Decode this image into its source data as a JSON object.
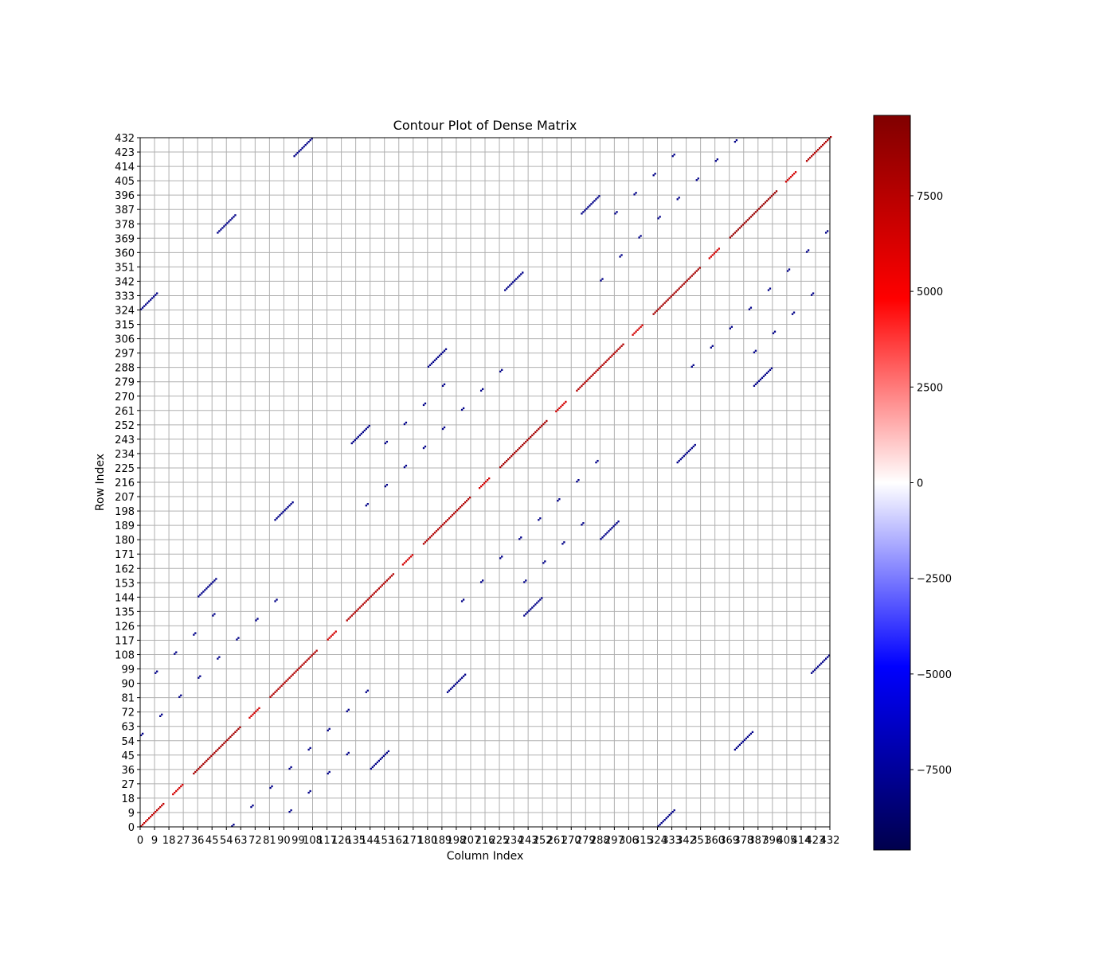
{
  "chart_data": {
    "type": "heatmap",
    "title": "Contour Plot of Dense Matrix",
    "xlabel": "Column Index",
    "ylabel": "Row Index",
    "xlim": [
      0,
      432
    ],
    "ylim": [
      0,
      432
    ],
    "x_ticks": [
      0,
      9,
      18,
      27,
      36,
      45,
      54,
      63,
      72,
      81,
      90,
      99,
      108,
      117,
      126,
      135,
      144,
      153,
      162,
      171,
      180,
      189,
      198,
      207,
      216,
      225,
      234,
      243,
      252,
      261,
      270,
      279,
      288,
      297,
      306,
      315,
      324,
      333,
      342,
      351,
      360,
      369,
      378,
      387,
      396,
      405,
      414,
      423,
      432
    ],
    "y_ticks": [
      0,
      9,
      18,
      27,
      36,
      45,
      54,
      63,
      72,
      81,
      90,
      99,
      108,
      117,
      126,
      135,
      144,
      153,
      162,
      171,
      180,
      189,
      198,
      207,
      216,
      225,
      234,
      243,
      252,
      261,
      270,
      279,
      288,
      297,
      306,
      315,
      324,
      333,
      342,
      351,
      360,
      369,
      378,
      387,
      396,
      405,
      414,
      423,
      432
    ],
    "x_tick_labels": [
      "0",
      "9",
      "18",
      "27",
      "36",
      "45",
      "54",
      "63",
      "72",
      "81",
      "90",
      "99",
      "108",
      "117",
      "126",
      "135",
      "144",
      "153",
      "162",
      "171",
      "180",
      "189",
      "198",
      "207",
      "216",
      "225",
      "234",
      "243",
      "252",
      "261",
      "270",
      "279",
      "288",
      "297",
      "306",
      "315",
      "324",
      "333",
      "342",
      "351",
      "360",
      "369",
      "378",
      "387",
      "396",
      "405",
      "414",
      "423",
      "432"
    ],
    "y_tick_labels": [
      "0",
      "9",
      "18",
      "27",
      "36",
      "45",
      "54",
      "63",
      "72",
      "81",
      "90",
      "99",
      "108",
      "117",
      "126",
      "135",
      "144",
      "153",
      "162",
      "171",
      "180",
      "189",
      "198",
      "207",
      "216",
      "225",
      "234",
      "243",
      "252",
      "261",
      "270",
      "279",
      "288",
      "297",
      "306",
      "315",
      "324",
      "333",
      "342",
      "351",
      "360",
      "369",
      "378",
      "387",
      "396",
      "405",
      "414",
      "423",
      "432"
    ],
    "grid": true,
    "colormap": "seismic",
    "colorbar": {
      "min": -9600,
      "max": 9600,
      "ticks": [
        -7500,
        -5000,
        -2500,
        0,
        2500,
        5000,
        7500
      ],
      "tick_labels": [
        "−7500",
        "−5000",
        "−2500",
        "0",
        "2500",
        "5000",
        "7500"
      ],
      "stops": [
        "#00004c",
        "#0000ff",
        "#ffffff",
        "#ff0000",
        "#800000"
      ]
    },
    "colors": {
      "positive": "#cc0000",
      "dark_positive": "#800000",
      "negative": "#0000ee"
    },
    "diagonal_segments": [
      {
        "x0": 0,
        "y0": 0,
        "len": 15,
        "value": 7200
      },
      {
        "x0": 20,
        "y0": 20,
        "len": 7,
        "value": 6500
      },
      {
        "x0": 33,
        "y0": 33,
        "len": 30,
        "value": 8200
      },
      {
        "x0": 68,
        "y0": 68,
        "len": 7,
        "value": 6500
      },
      {
        "x0": 81,
        "y0": 81,
        "len": 30,
        "value": 7800
      },
      {
        "x0": 117,
        "y0": 117,
        "len": 6,
        "value": 6500
      },
      {
        "x0": 129,
        "y0": 129,
        "len": 30,
        "value": 7800
      },
      {
        "x0": 164,
        "y0": 164,
        "len": 7,
        "value": 6500
      },
      {
        "x0": 177,
        "y0": 177,
        "len": 30,
        "value": 7800
      },
      {
        "x0": 212,
        "y0": 212,
        "len": 7,
        "value": 6500
      },
      {
        "x0": 225,
        "y0": 225,
        "len": 30,
        "value": 8200
      },
      {
        "x0": 260,
        "y0": 260,
        "len": 7,
        "value": 6500
      },
      {
        "x0": 273,
        "y0": 273,
        "len": 30,
        "value": 7800
      },
      {
        "x0": 308,
        "y0": 308,
        "len": 7,
        "value": 6500
      },
      {
        "x0": 321,
        "y0": 321,
        "len": 30,
        "value": 8200
      },
      {
        "x0": 356,
        "y0": 356,
        "len": 7,
        "value": 6500
      },
      {
        "x0": 369,
        "y0": 369,
        "len": 30,
        "value": 8600
      },
      {
        "x0": 404,
        "y0": 404,
        "len": 7,
        "value": 6500
      },
      {
        "x0": 417,
        "y0": 417,
        "len": 16,
        "value": 7800
      }
    ],
    "off_diagonal_segments": [
      {
        "x0": 324,
        "y0": 0,
        "len": 11,
        "value": -8000
      },
      {
        "x0": 0,
        "y0": 324,
        "len": 11,
        "value": -8000
      },
      {
        "x0": 96,
        "y0": 420,
        "len": 12,
        "value": -8000
      },
      {
        "x0": 420,
        "y0": 96,
        "len": 12,
        "value": -8000
      },
      {
        "x0": 48,
        "y0": 372,
        "len": 12,
        "value": -8000
      },
      {
        "x0": 372,
        "y0": 48,
        "len": 12,
        "value": -8000
      },
      {
        "x0": 36,
        "y0": 144,
        "len": 12,
        "value": -8000
      },
      {
        "x0": 144,
        "y0": 36,
        "len": 12,
        "value": -8000
      },
      {
        "x0": 84,
        "y0": 192,
        "len": 12,
        "value": -8000
      },
      {
        "x0": 192,
        "y0": 84,
        "len": 12,
        "value": -8000
      },
      {
        "x0": 132,
        "y0": 240,
        "len": 12,
        "value": -8000
      },
      {
        "x0": 240,
        "y0": 132,
        "len": 12,
        "value": -8000
      },
      {
        "x0": 180,
        "y0": 288,
        "len": 12,
        "value": -8000
      },
      {
        "x0": 288,
        "y0": 180,
        "len": 12,
        "value": -8000
      },
      {
        "x0": 228,
        "y0": 336,
        "len": 12,
        "value": -8000
      },
      {
        "x0": 336,
        "y0": 228,
        "len": 12,
        "value": -8000
      },
      {
        "x0": 276,
        "y0": 384,
        "len": 12,
        "value": -8000
      },
      {
        "x0": 384,
        "y0": 276,
        "len": 12,
        "value": -8000
      },
      {
        "x0": 57,
        "y0": 0,
        "len": 2,
        "value": -8000
      },
      {
        "x0": 69,
        "y0": 12,
        "len": 2,
        "value": -8000
      },
      {
        "x0": 81,
        "y0": 24,
        "len": 2,
        "value": -8000
      },
      {
        "x0": 93,
        "y0": 9,
        "len": 2,
        "value": -8000
      },
      {
        "x0": 93,
        "y0": 36,
        "len": 2,
        "value": -8000
      },
      {
        "x0": 105,
        "y0": 21,
        "len": 2,
        "value": -8000
      },
      {
        "x0": 105,
        "y0": 48,
        "len": 2,
        "value": -8000
      },
      {
        "x0": 117,
        "y0": 33,
        "len": 2,
        "value": -8000
      },
      {
        "x0": 117,
        "y0": 60,
        "len": 2,
        "value": -8000
      },
      {
        "x0": 129,
        "y0": 45,
        "len": 2,
        "value": -8000
      },
      {
        "x0": 129,
        "y0": 72,
        "len": 2,
        "value": -8000
      },
      {
        "x0": 141,
        "y0": 84,
        "len": 2,
        "value": -8000
      },
      {
        "x0": 0,
        "y0": 57,
        "len": 2,
        "value": -8000
      },
      {
        "x0": 12,
        "y0": 69,
        "len": 2,
        "value": -8000
      },
      {
        "x0": 24,
        "y0": 81,
        "len": 2,
        "value": -8000
      },
      {
        "x0": 9,
        "y0": 96,
        "len": 2,
        "value": -8000
      },
      {
        "x0": 21,
        "y0": 108,
        "len": 2,
        "value": -8000
      },
      {
        "x0": 36,
        "y0": 93,
        "len": 2,
        "value": -8000
      },
      {
        "x0": 48,
        "y0": 105,
        "len": 2,
        "value": -8000
      },
      {
        "x0": 60,
        "y0": 117,
        "len": 2,
        "value": -8000
      },
      {
        "x0": 72,
        "y0": 129,
        "len": 2,
        "value": -8000
      },
      {
        "x0": 84,
        "y0": 141,
        "len": 2,
        "value": -8000
      },
      {
        "x0": 33,
        "y0": 120,
        "len": 2,
        "value": -8000
      },
      {
        "x0": 45,
        "y0": 132,
        "len": 2,
        "value": -8000
      },
      {
        "x0": 141,
        "y0": 201,
        "len": 2,
        "value": -8000
      },
      {
        "x0": 153,
        "y0": 213,
        "len": 2,
        "value": -8000
      },
      {
        "x0": 153,
        "y0": 240,
        "len": 2,
        "value": -8000
      },
      {
        "x0": 165,
        "y0": 225,
        "len": 2,
        "value": -8000
      },
      {
        "x0": 165,
        "y0": 252,
        "len": 2,
        "value": -8000
      },
      {
        "x0": 177,
        "y0": 237,
        "len": 2,
        "value": -8000
      },
      {
        "x0": 177,
        "y0": 264,
        "len": 2,
        "value": -8000
      },
      {
        "x0": 189,
        "y0": 249,
        "len": 2,
        "value": -8000
      },
      {
        "x0": 189,
        "y0": 276,
        "len": 2,
        "value": -8000
      },
      {
        "x0": 201,
        "y0": 141,
        "len": 2,
        "value": -8000
      },
      {
        "x0": 201,
        "y0": 261,
        "len": 2,
        "value": -8000
      },
      {
        "x0": 213,
        "y0": 153,
        "len": 2,
        "value": -8000
      },
      {
        "x0": 213,
        "y0": 273,
        "len": 2,
        "value": -8000
      },
      {
        "x0": 225,
        "y0": 168,
        "len": 2,
        "value": -8000
      },
      {
        "x0": 225,
        "y0": 285,
        "len": 2,
        "value": -8000
      },
      {
        "x0": 237,
        "y0": 180,
        "len": 2,
        "value": -8000
      },
      {
        "x0": 240,
        "y0": 153,
        "len": 2,
        "value": -8000
      },
      {
        "x0": 249,
        "y0": 192,
        "len": 2,
        "value": -8000
      },
      {
        "x0": 252,
        "y0": 165,
        "len": 2,
        "value": -8000
      },
      {
        "x0": 261,
        "y0": 204,
        "len": 2,
        "value": -8000
      },
      {
        "x0": 264,
        "y0": 177,
        "len": 2,
        "value": -8000
      },
      {
        "x0": 273,
        "y0": 216,
        "len": 2,
        "value": -8000
      },
      {
        "x0": 276,
        "y0": 189,
        "len": 2,
        "value": -8000
      },
      {
        "x0": 285,
        "y0": 228,
        "len": 2,
        "value": -8000
      },
      {
        "x0": 288,
        "y0": 342,
        "len": 2,
        "value": -8000
      },
      {
        "x0": 297,
        "y0": 384,
        "len": 2,
        "value": -8000
      },
      {
        "x0": 300,
        "y0": 357,
        "len": 2,
        "value": -8000
      },
      {
        "x0": 309,
        "y0": 396,
        "len": 2,
        "value": -8000
      },
      {
        "x0": 312,
        "y0": 369,
        "len": 2,
        "value": -8000
      },
      {
        "x0": 321,
        "y0": 408,
        "len": 2,
        "value": -8000
      },
      {
        "x0": 324,
        "y0": 381,
        "len": 2,
        "value": -8000
      },
      {
        "x0": 333,
        "y0": 420,
        "len": 2,
        "value": -8000
      },
      {
        "x0": 336,
        "y0": 393,
        "len": 2,
        "value": -8000
      },
      {
        "x0": 345,
        "y0": 288,
        "len": 2,
        "value": -8000
      },
      {
        "x0": 348,
        "y0": 405,
        "len": 2,
        "value": -8000
      },
      {
        "x0": 357,
        "y0": 300,
        "len": 2,
        "value": -8000
      },
      {
        "x0": 360,
        "y0": 417,
        "len": 2,
        "value": -8000
      },
      {
        "x0": 369,
        "y0": 312,
        "len": 2,
        "value": -8000
      },
      {
        "x0": 372,
        "y0": 429,
        "len": 2,
        "value": -8000
      },
      {
        "x0": 381,
        "y0": 324,
        "len": 2,
        "value": -8000
      },
      {
        "x0": 384,
        "y0": 297,
        "len": 2,
        "value": -8000
      },
      {
        "x0": 393,
        "y0": 336,
        "len": 2,
        "value": -8000
      },
      {
        "x0": 396,
        "y0": 309,
        "len": 2,
        "value": -8000
      },
      {
        "x0": 405,
        "y0": 348,
        "len": 2,
        "value": -8000
      },
      {
        "x0": 408,
        "y0": 321,
        "len": 2,
        "value": -8000
      },
      {
        "x0": 417,
        "y0": 360,
        "len": 2,
        "value": -8000
      },
      {
        "x0": 420,
        "y0": 333,
        "len": 2,
        "value": -8000
      },
      {
        "x0": 429,
        "y0": 372,
        "len": 2,
        "value": -8000
      }
    ]
  }
}
